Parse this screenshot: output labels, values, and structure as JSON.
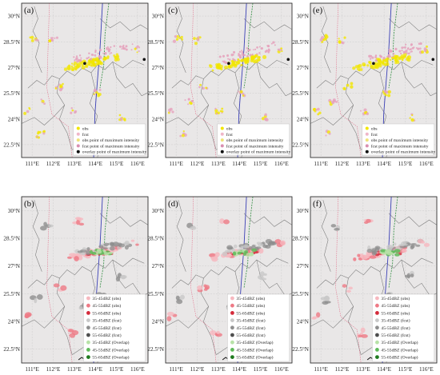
{
  "figure": {
    "panels": [
      {
        "id": "a",
        "label": "(a)",
        "legend_kind": "intensity"
      },
      {
        "id": "c",
        "label": "(c)",
        "legend_kind": "intensity"
      },
      {
        "id": "e",
        "label": "(e)",
        "legend_kind": "intensity"
      },
      {
        "id": "b",
        "label": "(b)",
        "legend_kind": "dbz"
      },
      {
        "id": "d",
        "label": "(d)",
        "legend_kind": "dbz"
      },
      {
        "id": "f",
        "label": "(f)",
        "legend_kind": "dbz"
      }
    ],
    "lon_ticks": [
      "111°E",
      "112°E",
      "113°E",
      "114°E",
      "115°E",
      "116°E"
    ],
    "lat_ticks": [
      "30°N",
      "28.5°N",
      "27°N",
      "25.5°N",
      "24°N",
      "22.5°N"
    ],
    "legend_intensity": [
      {
        "label": "obs",
        "color": "#f2e600",
        "marker": "dot"
      },
      {
        "label": "fcst",
        "color": "#f0b6c8",
        "marker": "dot"
      },
      {
        "label": "obs point of maximum intensity",
        "color": "#efe27a",
        "marker": "dot"
      },
      {
        "label": "fcst point of maximum intensity",
        "color": "#d98fb0",
        "marker": "dot"
      },
      {
        "label": "overlay point of maximum intensity",
        "color": "#111111",
        "marker": "dot"
      }
    ],
    "legend_dbz": [
      {
        "label": "35-45dBZ (obs)",
        "color": "#f6b8bf"
      },
      {
        "label": "45-55dBZ (obs)",
        "color": "#ee7a86"
      },
      {
        "label": "55-65dBZ (obs)",
        "color": "#d42a3a"
      },
      {
        "label": "35-45dBZ (fcst)",
        "color": "#c8c8c8"
      },
      {
        "label": "45-55dBZ (fcst)",
        "color": "#8e8e8e"
      },
      {
        "label": "55-65dBZ (fcst)",
        "color": "#4e4e4e"
      },
      {
        "label": "35-45dBZ (Overlap)",
        "color": "#b8e2a8"
      },
      {
        "label": "45-55dBZ (Overlap)",
        "color": "#5fba5a"
      },
      {
        "label": "55-65dBZ (Overlap)",
        "color": "#1f7a1f"
      }
    ]
  }
}
